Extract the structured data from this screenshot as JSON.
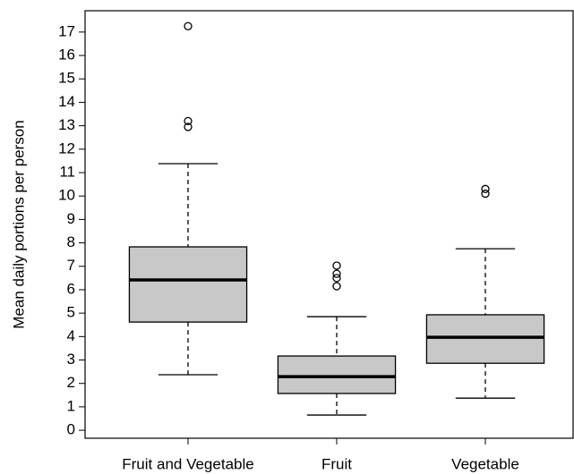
{
  "chart_data": {
    "type": "boxplot",
    "y_label": "Mean daily portions per person",
    "categories": [
      "Fruit and Vegetable",
      "Fruit",
      "Vegetable"
    ],
    "color": "#c8c8c8",
    "boxes": [
      {
        "whisker_low": 2.37,
        "q1": 4.62,
        "median": 6.42,
        "q3": 7.83,
        "whisker_high": 11.38,
        "outliers": [
          17.25,
          13.2,
          12.95
        ]
      },
      {
        "whisker_low": 0.65,
        "q1": 1.57,
        "median": 2.29,
        "q3": 3.17,
        "whisker_high": 4.85,
        "outliers": [
          7.03,
          6.68,
          6.5,
          6.15
        ]
      },
      {
        "whisker_low": 1.37,
        "q1": 2.86,
        "median": 3.97,
        "q3": 4.93,
        "whisker_high": 7.75,
        "outliers": [
          10.3,
          10.1
        ]
      }
    ],
    "ylim": [
      -0.34,
      17.91
    ],
    "yticks": [
      0,
      1,
      2,
      3,
      4,
      5,
      6,
      7,
      8,
      9,
      10,
      11,
      12,
      13,
      14,
      15,
      16,
      17
    ]
  }
}
